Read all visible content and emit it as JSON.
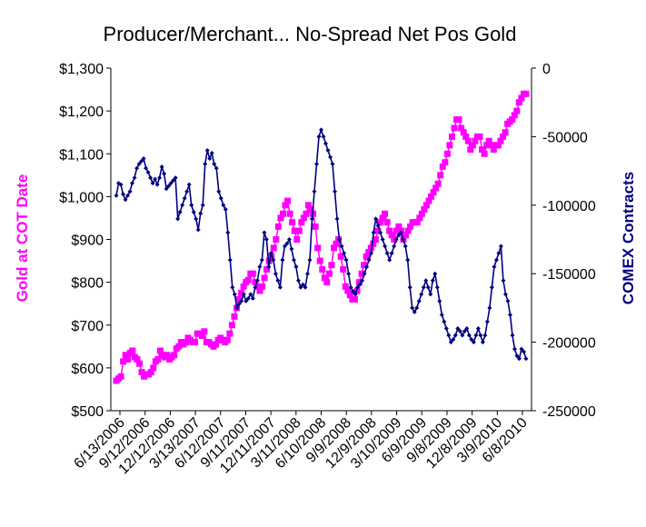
{
  "chart_data": {
    "type": "line",
    "title": "Producer/Merchant... No-Spread Net Pos Gold",
    "y_left_label": "Gold at COT Date",
    "y_right_label": "COMEX Contracts",
    "y_left_range": [
      500,
      1300
    ],
    "y_right_range": [
      -250000,
      0
    ],
    "y_left_ticks": [
      "$500",
      "$600",
      "$700",
      "$800",
      "$900",
      "$1,000",
      "$1,100",
      "$1,200",
      "$1,300"
    ],
    "y_right_ticks": [
      "-250000",
      "-200000",
      "-150000",
      "-100000",
      "-50000",
      "0"
    ],
    "x_ticks": [
      "6/13/2006",
      "9/12/2006",
      "12/12/2006",
      "3/13/2007",
      "6/12/2007",
      "9/11/2007",
      "12/11/2007",
      "3/11/2008",
      "6/10/2008",
      "9/9/2008",
      "12/9/2008",
      "3/10/2009",
      "6/9/2009",
      "9/8/2009",
      "12/8/2009",
      "3/9/2010",
      "6/8/2010"
    ],
    "grid": false,
    "legend": "none",
    "series": [
      {
        "axis": "left",
        "color": "#ff00ff",
        "marker": "square",
        "values": [
          570,
          575,
          580,
          615,
          630,
          620,
          635,
          640,
          625,
          620,
          610,
          590,
          580,
          585,
          585,
          590,
          600,
          615,
          620,
          640,
          630,
          625,
          630,
          620,
          625,
          630,
          645,
          650,
          660,
          655,
          660,
          670,
          665,
          660,
          660,
          680,
          680,
          675,
          685,
          660,
          660,
          655,
          650,
          655,
          665,
          670,
          665,
          660,
          665,
          680,
          700,
          720,
          740,
          760,
          775,
          790,
          800,
          805,
          820,
          820,
          800,
          790,
          780,
          790,
          810,
          830,
          850,
          860,
          880,
          900,
          930,
          950,
          960,
          980,
          990,
          960,
          940,
          920,
          900,
          920,
          940,
          950,
          960,
          980,
          970,
          960,
          930,
          880,
          850,
          830,
          810,
          800,
          820,
          840,
          880,
          890,
          900,
          860,
          830,
          790,
          780,
          770,
          760,
          760,
          780,
          800,
          820,
          840,
          860,
          870,
          880,
          890,
          900,
          920,
          940,
          950,
          960,
          940,
          920,
          910,
          900,
          920,
          930,
          920,
          900,
          910,
          920,
          930,
          940,
          940,
          940,
          950,
          960,
          970,
          980,
          990,
          1000,
          1010,
          1020,
          1030,
          1050,
          1070,
          1080,
          1100,
          1120,
          1140,
          1160,
          1180,
          1180,
          1160,
          1150,
          1140,
          1130,
          1110,
          1120,
          1130,
          1140,
          1140,
          1110,
          1100,
          1120,
          1130,
          1120,
          1110,
          1120,
          1120,
          1130,
          1140,
          1150,
          1170,
          1175,
          1180,
          1190,
          1200,
          1220,
          1230,
          1240,
          1240
        ]
      },
      {
        "axis": "right",
        "color": "#000080",
        "marker": "diamond",
        "values": [
          -93000,
          -84000,
          -85000,
          -92000,
          -96000,
          -93000,
          -90000,
          -84000,
          -80000,
          -73000,
          -70000,
          -68000,
          -66000,
          -73000,
          -76000,
          -80000,
          -84000,
          -81000,
          -85000,
          -80000,
          -72000,
          -77000,
          -88000,
          -86000,
          -84000,
          -82000,
          -80000,
          -110000,
          -105000,
          -100000,
          -95000,
          -90000,
          -85000,
          -100000,
          -105000,
          -110000,
          -118000,
          -106000,
          -100000,
          -70000,
          -60000,
          -66000,
          -62000,
          -70000,
          -73000,
          -90000,
          -95000,
          -100000,
          -103000,
          -120000,
          -140000,
          -160000,
          -165000,
          -175000,
          -172000,
          -170000,
          -165000,
          -170000,
          -168000,
          -165000,
          -168000,
          -160000,
          -155000,
          -145000,
          -140000,
          -120000,
          -125000,
          -145000,
          -135000,
          -140000,
          -150000,
          -155000,
          -160000,
          -140000,
          -130000,
          -128000,
          -125000,
          -132000,
          -140000,
          -145000,
          -155000,
          -160000,
          -158000,
          -160000,
          -150000,
          -140000,
          -110000,
          -90000,
          -70000,
          -50000,
          -45000,
          -50000,
          -55000,
          -60000,
          -65000,
          -70000,
          -90000,
          -110000,
          -125000,
          -130000,
          -135000,
          -140000,
          -150000,
          -160000,
          -163000,
          -165000,
          -160000,
          -158000,
          -155000,
          -150000,
          -145000,
          -140000,
          -135000,
          -120000,
          -110000,
          -115000,
          -120000,
          -125000,
          -130000,
          -135000,
          -140000,
          -135000,
          -130000,
          -125000,
          -122000,
          -120000,
          -125000,
          -130000,
          -140000,
          -160000,
          -175000,
          -178000,
          -175000,
          -170000,
          -165000,
          -160000,
          -155000,
          -160000,
          -165000,
          -155000,
          -150000,
          -160000,
          -170000,
          -180000,
          -185000,
          -190000,
          -195000,
          -200000,
          -198000,
          -195000,
          -190000,
          -192000,
          -195000,
          -192000,
          -190000,
          -195000,
          -198000,
          -200000,
          -195000,
          -190000,
          -195000,
          -200000,
          -195000,
          -185000,
          -175000,
          -160000,
          -145000,
          -140000,
          -135000,
          -130000,
          -155000,
          -165000,
          -170000,
          -180000,
          -195000,
          -205000,
          -210000,
          -212000,
          -205000,
          -207000,
          -212000
        ]
      }
    ]
  }
}
